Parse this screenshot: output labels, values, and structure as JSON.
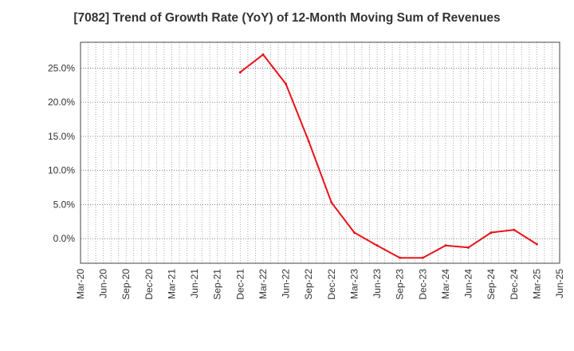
{
  "chart_data": {
    "type": "line",
    "title": "[7082]  Trend of Growth Rate (YoY) of 12-Month Moving Sum of Revenues",
    "xlabel": "",
    "ylabel": "",
    "x_ticks": [
      "Mar-20",
      "Jun-20",
      "Sep-20",
      "Dec-20",
      "Mar-21",
      "Jun-21",
      "Sep-21",
      "Dec-21",
      "Mar-22",
      "Jun-22",
      "Sep-22",
      "Dec-22",
      "Mar-23",
      "Jun-23",
      "Sep-23",
      "Dec-23",
      "Mar-24",
      "Jun-24",
      "Sep-24",
      "Dec-24",
      "Mar-25",
      "Jun-25"
    ],
    "y_ticks": [
      0,
      5,
      10,
      15,
      20,
      25
    ],
    "y_tick_labels": [
      "0.0%",
      "5.0%",
      "10.0%",
      "15.0%",
      "20.0%",
      "25.0%"
    ],
    "ylim": [
      -3.6,
      28.8
    ],
    "grid": true,
    "series": [
      {
        "color": "#e8131b",
        "x": [
          "Dec-21",
          "Mar-22",
          "Jun-22",
          "Sep-22",
          "Dec-22",
          "Mar-23",
          "Jun-23",
          "Sep-23",
          "Dec-23",
          "Mar-24",
          "Jun-24",
          "Sep-24",
          "Dec-24",
          "Mar-25"
        ],
        "values": [
          24.4,
          27.0,
          22.7,
          14.3,
          5.3,
          0.9,
          -1.0,
          -2.8,
          -2.8,
          -1.0,
          -1.3,
          0.9,
          1.3,
          -0.8
        ]
      }
    ]
  }
}
